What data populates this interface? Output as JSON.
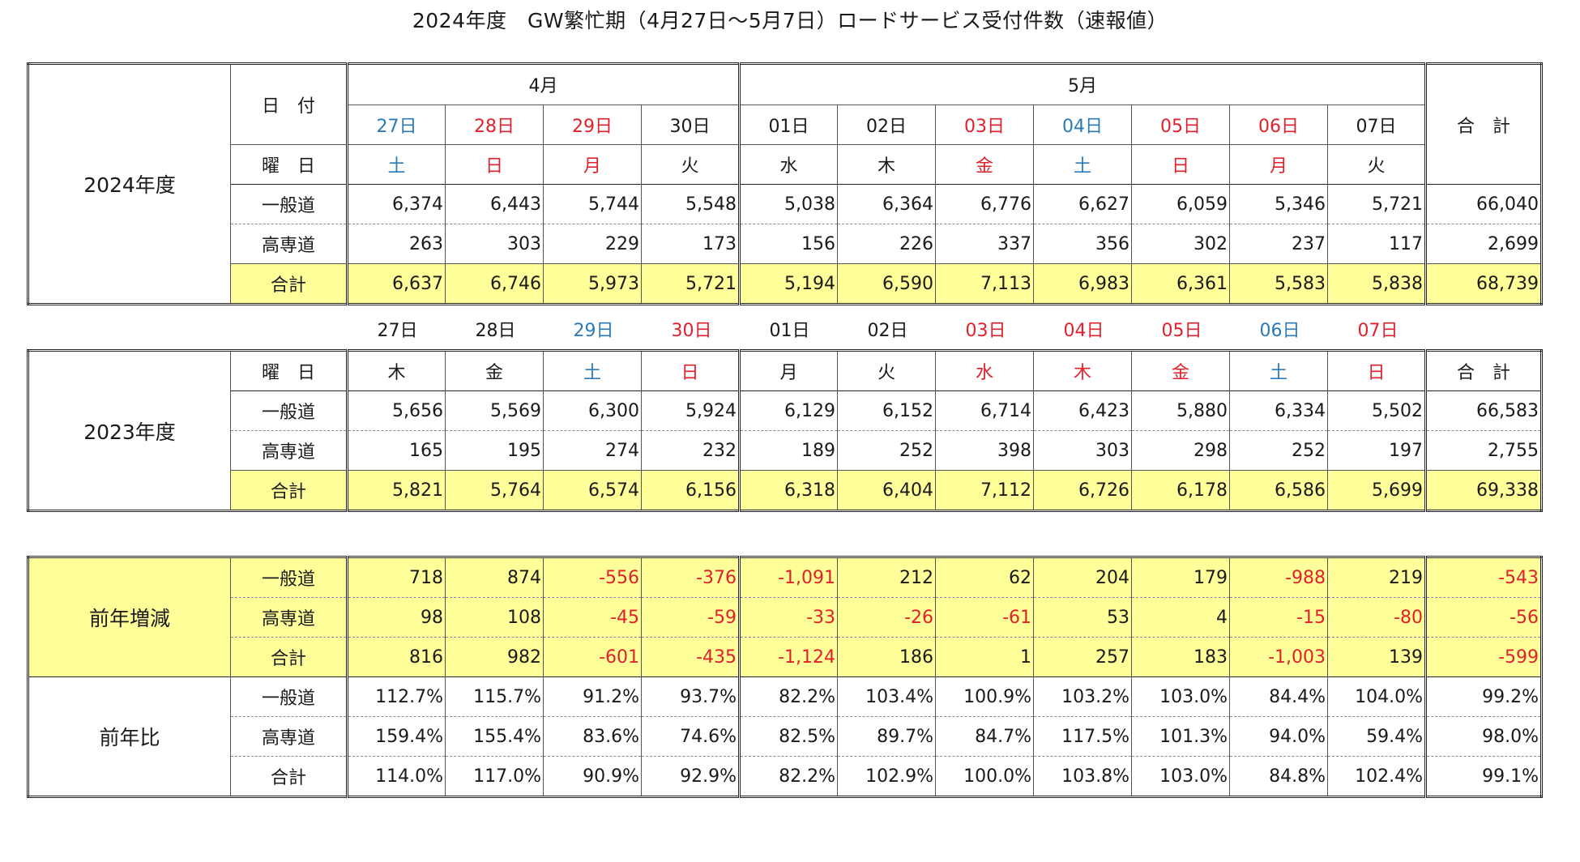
{
  "title": "2024年度　GW繁忙期（4月27日～5月7日）ロードサービス受付件数（速報値）",
  "colors": {
    "sunday_holiday": "#e0212c",
    "saturday": "#2a7ab8",
    "highlight": "#ffff99",
    "negative": "#e0212c"
  },
  "labels": {
    "date": "日　付",
    "weekday": "曜　日",
    "general_road": "一般道",
    "expressway": "高専道",
    "subtotal": "合計",
    "total": "合　計"
  },
  "fy2024": {
    "label": "2024年度",
    "month_april": "4月",
    "month_may": "5月",
    "dates": [
      {
        "text": "27日",
        "color": "blue"
      },
      {
        "text": "28日",
        "color": "red"
      },
      {
        "text": "29日",
        "color": "red"
      },
      {
        "text": "30日",
        "color": ""
      },
      {
        "text": "01日",
        "color": ""
      },
      {
        "text": "02日",
        "color": ""
      },
      {
        "text": "03日",
        "color": "red"
      },
      {
        "text": "04日",
        "color": "blue"
      },
      {
        "text": "05日",
        "color": "red"
      },
      {
        "text": "06日",
        "color": "red"
      },
      {
        "text": "07日",
        "color": ""
      }
    ],
    "weekdays": [
      {
        "text": "土",
        "color": "blue"
      },
      {
        "text": "日",
        "color": "red"
      },
      {
        "text": "月",
        "color": "red"
      },
      {
        "text": "火",
        "color": ""
      },
      {
        "text": "水",
        "color": ""
      },
      {
        "text": "木",
        "color": ""
      },
      {
        "text": "金",
        "color": "red"
      },
      {
        "text": "土",
        "color": "blue"
      },
      {
        "text": "日",
        "color": "red"
      },
      {
        "text": "月",
        "color": "red"
      },
      {
        "text": "火",
        "color": ""
      }
    ],
    "general_road": [
      "6,374",
      "6,443",
      "5,744",
      "5,548",
      "5,038",
      "6,364",
      "6,776",
      "6,627",
      "6,059",
      "5,346",
      "5,721",
      "66,040"
    ],
    "expressway": [
      "263",
      "303",
      "229",
      "173",
      "156",
      "226",
      "337",
      "356",
      "302",
      "237",
      "117",
      "2,699"
    ],
    "total": [
      "6,637",
      "6,746",
      "5,973",
      "5,721",
      "5,194",
      "6,590",
      "7,113",
      "6,983",
      "6,361",
      "5,583",
      "5,838",
      "68,739"
    ]
  },
  "fy2023": {
    "label": "2023年度",
    "dates": [
      {
        "text": "27日",
        "color": ""
      },
      {
        "text": "28日",
        "color": ""
      },
      {
        "text": "29日",
        "color": "blue"
      },
      {
        "text": "30日",
        "color": "red"
      },
      {
        "text": "01日",
        "color": ""
      },
      {
        "text": "02日",
        "color": ""
      },
      {
        "text": "03日",
        "color": "red"
      },
      {
        "text": "04日",
        "color": "red"
      },
      {
        "text": "05日",
        "color": "red"
      },
      {
        "text": "06日",
        "color": "blue"
      },
      {
        "text": "07日",
        "color": "red"
      }
    ],
    "weekdays": [
      {
        "text": "木",
        "color": ""
      },
      {
        "text": "金",
        "color": ""
      },
      {
        "text": "土",
        "color": "blue"
      },
      {
        "text": "日",
        "color": "red"
      },
      {
        "text": "月",
        "color": ""
      },
      {
        "text": "火",
        "color": ""
      },
      {
        "text": "水",
        "color": "red"
      },
      {
        "text": "木",
        "color": "red"
      },
      {
        "text": "金",
        "color": "red"
      },
      {
        "text": "土",
        "color": "blue"
      },
      {
        "text": "日",
        "color": "red"
      }
    ],
    "general_road": [
      "5,656",
      "5,569",
      "6,300",
      "5,924",
      "6,129",
      "6,152",
      "6,714",
      "6,423",
      "5,880",
      "6,334",
      "5,502",
      "66,583"
    ],
    "expressway": [
      "165",
      "195",
      "274",
      "232",
      "189",
      "252",
      "398",
      "303",
      "298",
      "252",
      "197",
      "2,755"
    ],
    "total": [
      "5,821",
      "5,764",
      "6,574",
      "6,156",
      "6,318",
      "6,404",
      "7,112",
      "6,726",
      "6,178",
      "6,586",
      "5,699",
      "69,338"
    ]
  },
  "yoy_change": {
    "label": "前年増減",
    "general_road": [
      "718",
      "874",
      "-556",
      "-376",
      "-1,091",
      "212",
      "62",
      "204",
      "179",
      "-988",
      "219",
      "-543"
    ],
    "expressway": [
      "98",
      "108",
      "-45",
      "-59",
      "-33",
      "-26",
      "-61",
      "53",
      "4",
      "-15",
      "-80",
      "-56"
    ],
    "total": [
      "816",
      "982",
      "-601",
      "-435",
      "-1,124",
      "186",
      "1",
      "257",
      "183",
      "-1,003",
      "139",
      "-599"
    ]
  },
  "yoy_ratio": {
    "label": "前年比",
    "general_road": [
      "112.7%",
      "115.7%",
      "91.2%",
      "93.7%",
      "82.2%",
      "103.4%",
      "100.9%",
      "103.2%",
      "103.0%",
      "84.4%",
      "104.0%",
      "99.2%"
    ],
    "expressway": [
      "159.4%",
      "155.4%",
      "83.6%",
      "74.6%",
      "82.5%",
      "89.7%",
      "84.7%",
      "117.5%",
      "101.3%",
      "94.0%",
      "59.4%",
      "98.0%"
    ],
    "total": [
      "114.0%",
      "117.0%",
      "90.9%",
      "92.9%",
      "82.2%",
      "102.9%",
      "100.0%",
      "103.8%",
      "103.0%",
      "84.8%",
      "102.4%",
      "99.1%"
    ]
  }
}
